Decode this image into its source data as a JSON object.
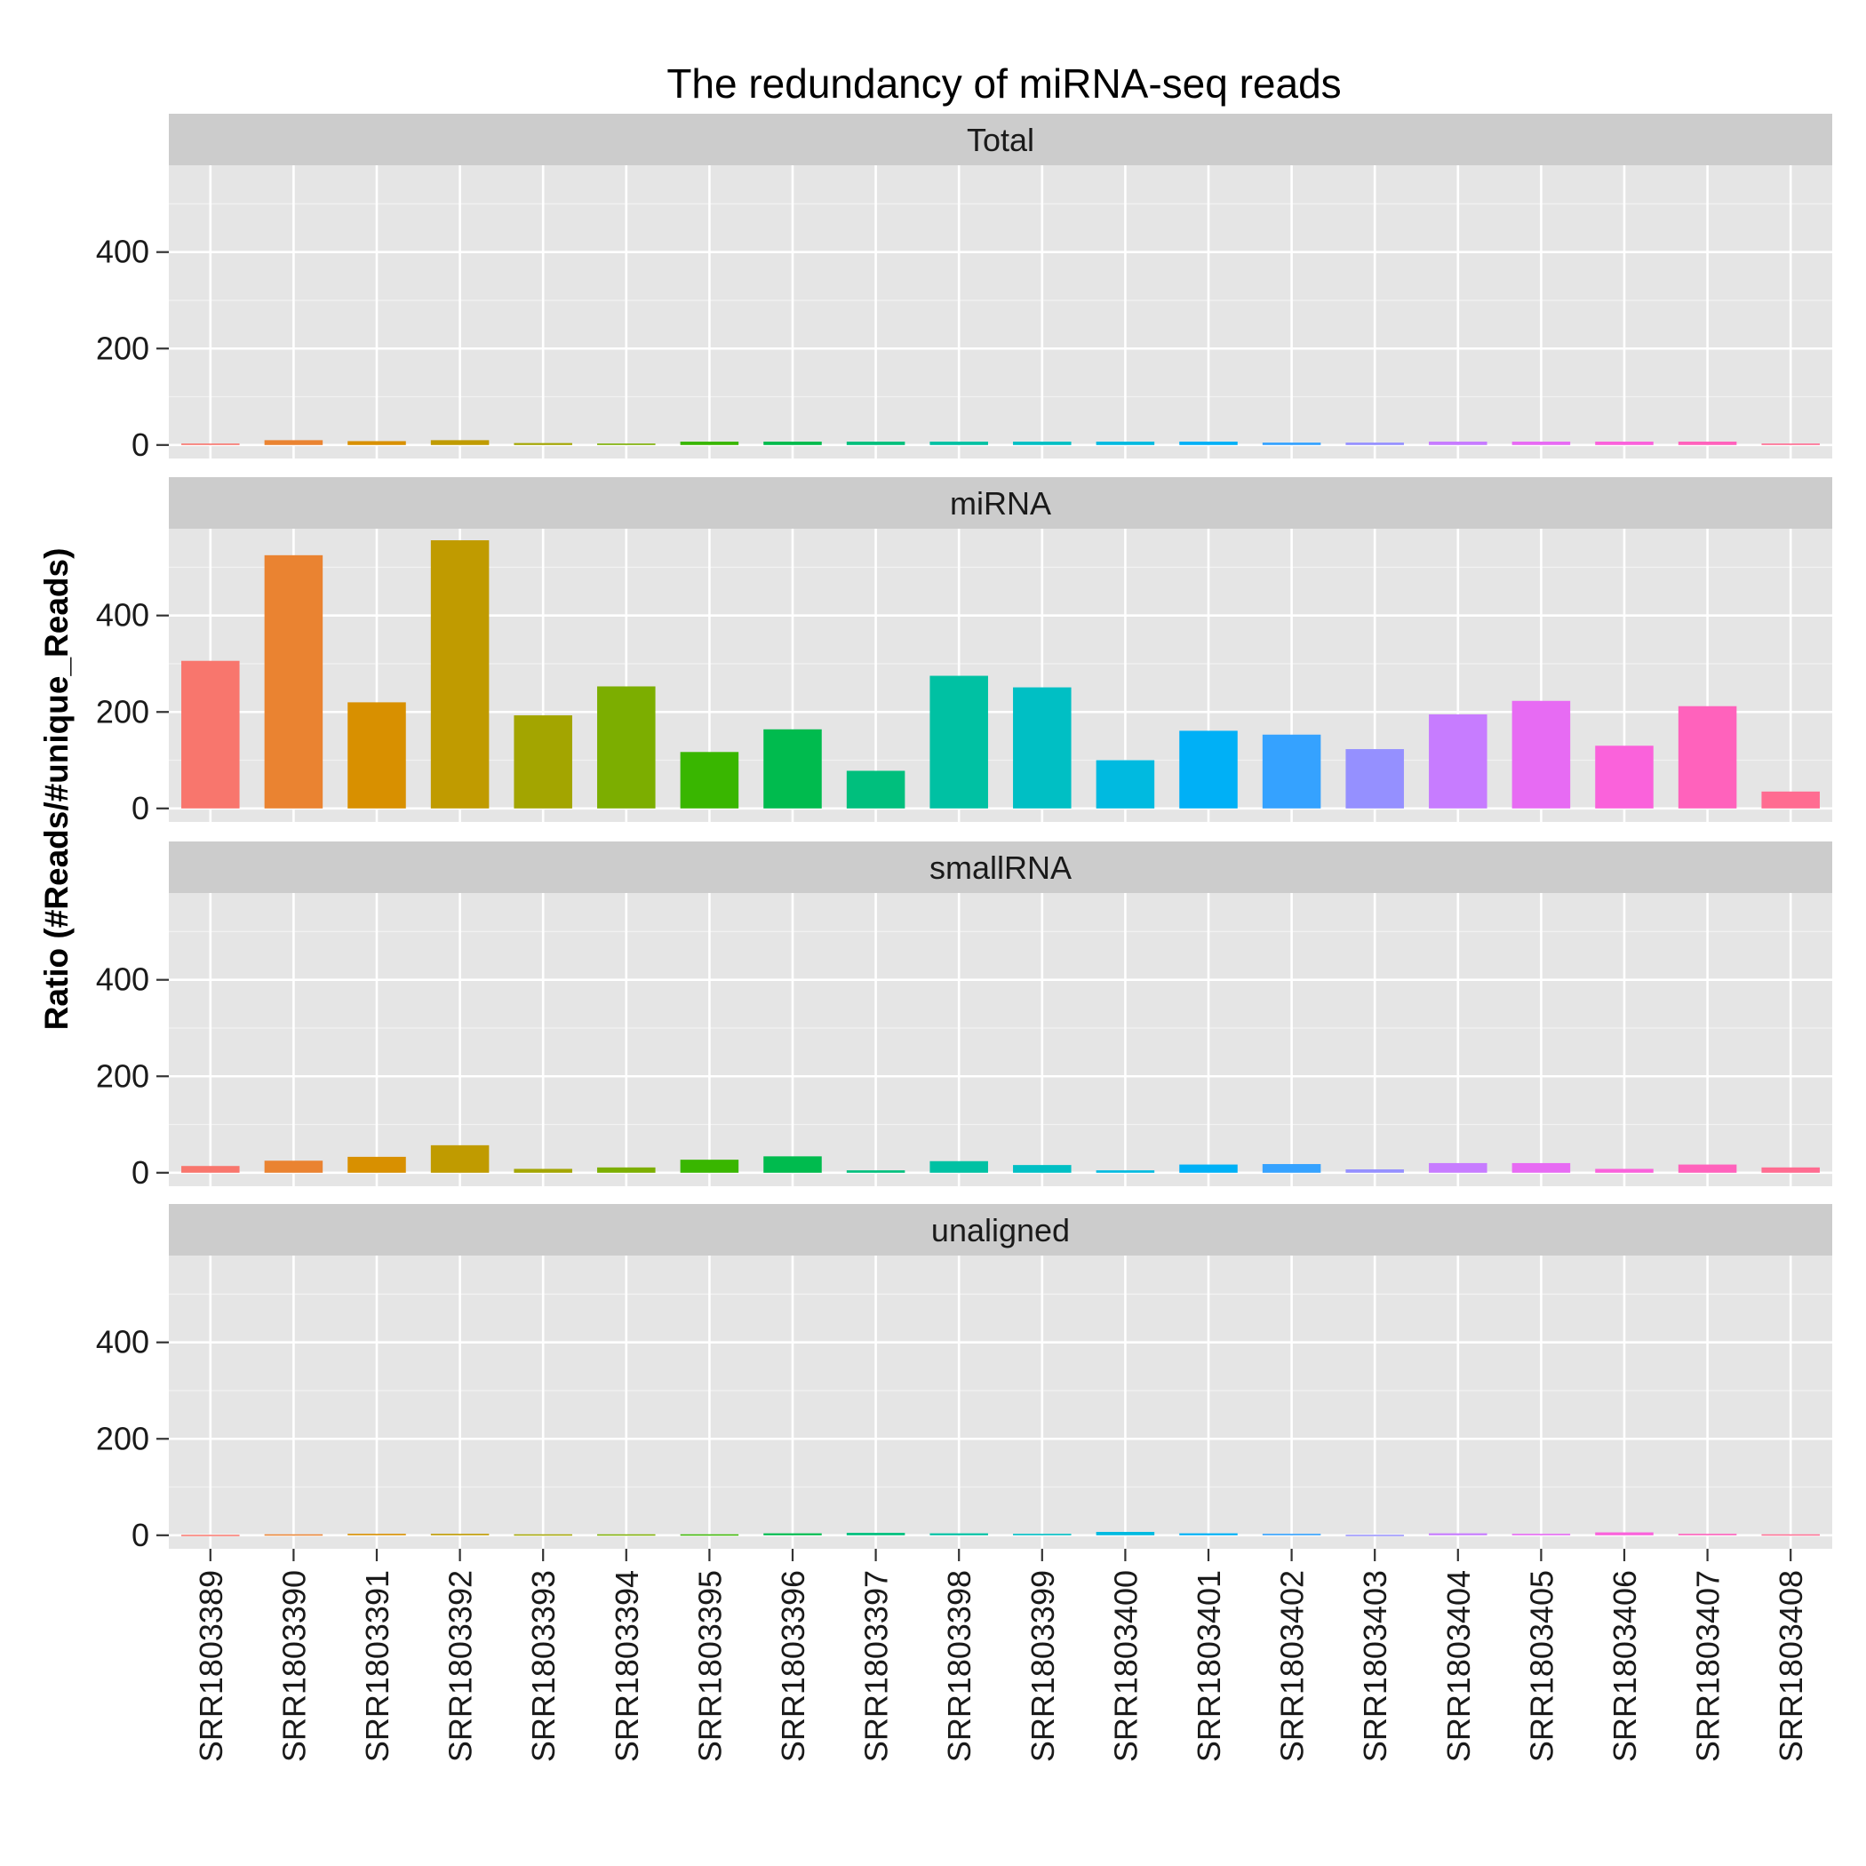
{
  "chart_data": {
    "type": "bar",
    "title": "The redundancy of miRNA-seq reads",
    "ylabel": "Ratio (#Reads/#unique_Reads)",
    "xlabel": "",
    "ylim": [
      -28,
      580
    ],
    "yticks": [
      0,
      200,
      400
    ],
    "grid": true,
    "legend": "none",
    "categories": [
      "SRR1803389",
      "SRR1803390",
      "SRR1803391",
      "SRR1803392",
      "SRR1803393",
      "SRR1803394",
      "SRR1803395",
      "SRR1803396",
      "SRR1803397",
      "SRR1803398",
      "SRR1803399",
      "SRR1803400",
      "SRR1803401",
      "SRR1803402",
      "SRR1803403",
      "SRR1803404",
      "SRR1803405",
      "SRR1803406",
      "SRR1803407",
      "SRR1803408"
    ],
    "colors": [
      "#F8766D",
      "#EA8331",
      "#D89000",
      "#C09B00",
      "#A3A500",
      "#7CAE00",
      "#39B600",
      "#00BB4E",
      "#00BF7D",
      "#00C1A3",
      "#00BFC4",
      "#00BAE0",
      "#00B0F6",
      "#35A2FF",
      "#9590FF",
      "#C77CFF",
      "#E76BF3",
      "#FA62DB",
      "#FF62BC",
      "#FF6C91"
    ],
    "series": [
      {
        "name": "Total",
        "values": [
          3,
          10,
          8,
          10,
          4,
          3,
          7,
          7,
          7,
          7,
          7,
          7,
          7,
          5,
          5,
          7,
          7,
          7,
          7,
          3
        ]
      },
      {
        "name": "miRNA",
        "values": [
          306,
          525,
          220,
          556,
          193,
          253,
          117,
          164,
          78,
          275,
          251,
          100,
          161,
          153,
          123,
          195,
          223,
          130,
          212,
          35
        ]
      },
      {
        "name": "smallRNA",
        "values": [
          14,
          25,
          33,
          57,
          8,
          11,
          27,
          34,
          5,
          24,
          16,
          5,
          17,
          18,
          7,
          20,
          20,
          8,
          17,
          11
        ]
      },
      {
        "name": "unaligned",
        "values": [
          1,
          2,
          3,
          3,
          2,
          2,
          2,
          4,
          5,
          4,
          3,
          7,
          4,
          3,
          1,
          4,
          3,
          6,
          3,
          2
        ]
      }
    ]
  }
}
